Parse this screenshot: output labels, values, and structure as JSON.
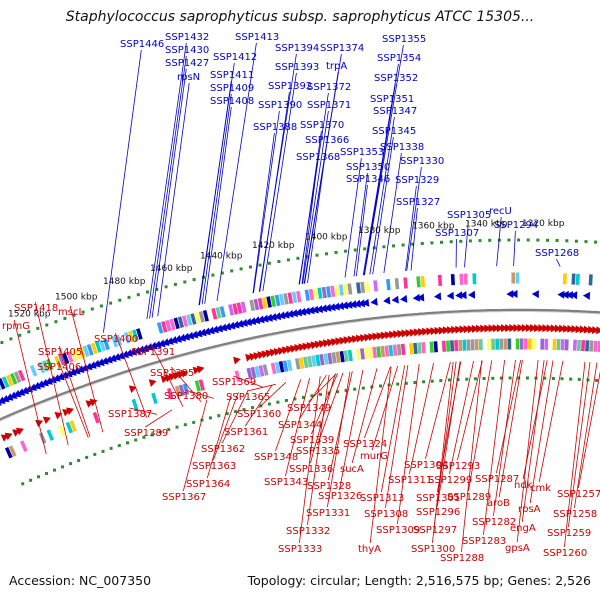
{
  "title": "Staphylococcus saprophyticus subsp. saprophyticus ATCC 15305...",
  "footer": {
    "accession": "Accession: NC_007350",
    "summary": "Topology: circular; Length: 2,516,575 bp; Genes: 2,526"
  },
  "colors": {
    "plus_strand": "#0000cc",
    "minus_strand": "#cc0000",
    "backbone": "#808080",
    "tick_dots": "#2e8b2e"
  },
  "kbp_ticks": [
    "1520 kbp",
    "1500 kbp",
    "1480 kbp",
    "1460 kbp",
    "1440 kbp",
    "1420 kbp",
    "1400 kbp",
    "1380 kbp",
    "1360 kbp",
    "1340 kbp",
    "1320 kbp"
  ],
  "plus_labels": [
    "SSP1446",
    "SSP1432",
    "SSP1430",
    "SSP1427",
    "rpsN",
    "SSP1413",
    "SSP1412",
    "SSP1411",
    "SSP1409",
    "SSP1408",
    "SSP1394",
    "SSP1393",
    "SSP1392",
    "SSP1390",
    "SSP1388",
    "SSP1374",
    "trpA",
    "SSP1372",
    "SSP1371",
    "SSP1370",
    "SSP1366",
    "SSP1368",
    "SSP1355",
    "SSP1354",
    "SSP1352",
    "SSP1351",
    "SSP1347",
    "SSP1345",
    "SSP1353",
    "SSP1338",
    "SSP1350",
    "SSP1346",
    "SSP1330",
    "SSP1329",
    "SSP1327",
    "SSP1305",
    "recU",
    "SSP1307",
    "SSP1294",
    "SSP1268"
  ],
  "minus_labels": [
    "SSP1418",
    "mscL",
    "rpmG",
    "SSP1400",
    "SSP1405",
    "SSP1406",
    "SSP1391",
    "SSP1385",
    "SSP1380",
    "SSP1387",
    "SSP1389",
    "SSP1369",
    "SSP1365",
    "SSP1360",
    "SSP1361",
    "SSP1362",
    "SSP1363",
    "SSP1364",
    "SSP1367",
    "SSP1349",
    "SSP1344",
    "SSP1339",
    "SSP1335",
    "SSP1348",
    "SSP1336",
    "SSP1343",
    "SSP1324",
    "murG",
    "sucA",
    "SSP1328",
    "SSP1326",
    "SSP1331",
    "SSP1332",
    "SSP1333",
    "SSP1304",
    "SSP1311",
    "SSP1313",
    "SSP1308",
    "SSP1309",
    "thyA",
    "SSP1299",
    "SSP1301",
    "SSP1296",
    "SSP1297",
    "SSP1300",
    "SSP1293",
    "SSP1287",
    "SSP1289",
    "aroB",
    "SSP1282",
    "SSP1283",
    "SSP1288",
    "ndk",
    "cmk",
    "rpsA",
    "engA",
    "gpsA",
    "SSP1257",
    "SSP1258",
    "SSP1259",
    "SSP1260"
  ]
}
